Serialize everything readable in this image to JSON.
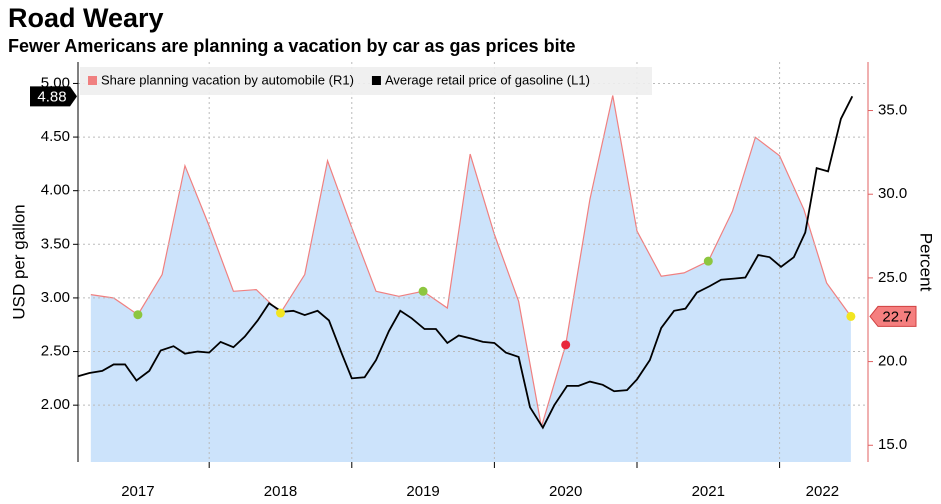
{
  "chart_data": {
    "type": "line",
    "title": "Road Weary",
    "subtitle": "Fewer Americans are planning a vacation by car as gas prices bite",
    "ylabel": "USD per gallon",
    "y2label": "Percent",
    "xlim": [
      2017.08,
      2022.62
    ],
    "xticks": [
      {
        "value": 2017.5,
        "label": "2017"
      },
      {
        "value": 2018.5,
        "label": "2018"
      },
      {
        "value": 2019.5,
        "label": "2019"
      },
      {
        "value": 2020.5,
        "label": "2020"
      },
      {
        "value": 2021.5,
        "label": "2021"
      },
      {
        "value": 2022.3,
        "label": "2022"
      }
    ],
    "ylim": [
      1.47,
      5.2
    ],
    "yticks": [
      {
        "value": 2,
        "label": "2.00"
      },
      {
        "value": 2.5,
        "label": "2.50"
      },
      {
        "value": 3,
        "label": "3.00"
      },
      {
        "value": 3.5,
        "label": "3.50"
      },
      {
        "value": 4,
        "label": "4.00"
      },
      {
        "value": 4.5,
        "label": "4.50"
      },
      {
        "value": 5,
        "label": "5.00"
      }
    ],
    "y2lim": [
      14,
      37.9
    ],
    "y2ticks": [
      {
        "value": 15,
        "label": "15.0"
      },
      {
        "value": 20,
        "label": "20.0"
      },
      {
        "value": 25,
        "label": "25.0"
      },
      {
        "value": 30,
        "label": "30.0"
      },
      {
        "value": 35,
        "label": "35.0"
      }
    ],
    "grid": true,
    "series": [
      {
        "name": "Share planning vacation by automobile (R1)",
        "type": "area",
        "axis": "y2",
        "color": "#f08080",
        "fill": "#cce3fb",
        "x": [
          2017.17,
          2017.33,
          2017.5,
          2017.67,
          2017.83,
          2018,
          2018.17,
          2018.33,
          2018.5,
          2018.67,
          2018.83,
          2019,
          2019.17,
          2019.33,
          2019.5,
          2019.67,
          2019.83,
          2020,
          2020.17,
          2020.33,
          2020.5,
          2020.67,
          2020.83,
          2021,
          2021.17,
          2021.33,
          2021.5,
          2021.67,
          2021.83,
          2022,
          2022.17,
          2022.33,
          2022.5
        ],
        "values": [
          24.0,
          23.8,
          22.8,
          25.2,
          31.7,
          28.1,
          24.2,
          24.3,
          22.9,
          25.2,
          32.0,
          28.0,
          24.2,
          23.9,
          24.2,
          23.2,
          32.4,
          27.6,
          23.6,
          16.1,
          21.0,
          29.7,
          35.9,
          27.8,
          25.1,
          25.3,
          26.0,
          29.0,
          33.4,
          32.3,
          29.1,
          24.7,
          22.7
        ],
        "marker_colors": [
          null,
          null,
          "#8dc63f",
          null,
          null,
          null,
          null,
          null,
          "#f2e521",
          null,
          null,
          null,
          null,
          null,
          "#8dc63f",
          null,
          null,
          null,
          null,
          null,
          "#e8283c",
          null,
          null,
          null,
          null,
          null,
          "#8dc63f",
          null,
          null,
          null,
          null,
          null,
          "#f2e521"
        ]
      },
      {
        "name": "Average retail price of gasoline (L1)",
        "type": "line",
        "axis": "y",
        "color": "#000000",
        "x": [
          2017.08,
          2017.16,
          2017.25,
          2017.33,
          2017.41,
          2017.49,
          2017.58,
          2017.66,
          2017.75,
          2017.83,
          2017.92,
          2018.0,
          2018.08,
          2018.17,
          2018.25,
          2018.34,
          2018.42,
          2018.51,
          2018.59,
          2018.67,
          2018.76,
          2018.84,
          2018.93,
          2019.0,
          2019.09,
          2019.17,
          2019.26,
          2019.34,
          2019.42,
          2019.51,
          2019.59,
          2019.67,
          2019.75,
          2019.84,
          2019.92,
          2020.0,
          2020.08,
          2020.17,
          2020.25,
          2020.34,
          2020.42,
          2020.51,
          2020.59,
          2020.67,
          2020.76,
          2020.84,
          2020.93,
          2021.0,
          2021.09,
          2021.17,
          2021.26,
          2021.34,
          2021.42,
          2021.51,
          2021.59,
          2021.68,
          2021.76,
          2021.85,
          2021.93,
          2022.01,
          2022.1,
          2022.18,
          2022.26,
          2022.34,
          2022.43,
          2022.51
        ],
        "values": [
          2.27,
          2.3,
          2.32,
          2.38,
          2.38,
          2.23,
          2.32,
          2.51,
          2.55,
          2.48,
          2.5,
          2.49,
          2.59,
          2.54,
          2.64,
          2.79,
          2.95,
          2.87,
          2.88,
          2.84,
          2.88,
          2.79,
          2.48,
          2.25,
          2.26,
          2.42,
          2.69,
          2.88,
          2.81,
          2.71,
          2.71,
          2.58,
          2.65,
          2.62,
          2.59,
          2.58,
          2.49,
          2.45,
          1.98,
          1.79,
          2.0,
          2.18,
          2.18,
          2.22,
          2.19,
          2.13,
          2.14,
          2.24,
          2.42,
          2.72,
          2.88,
          2.9,
          3.05,
          3.11,
          3.17,
          3.18,
          3.19,
          3.4,
          3.38,
          3.29,
          3.38,
          3.61,
          4.21,
          4.18,
          4.67,
          4.88
        ]
      }
    ]
  }
}
